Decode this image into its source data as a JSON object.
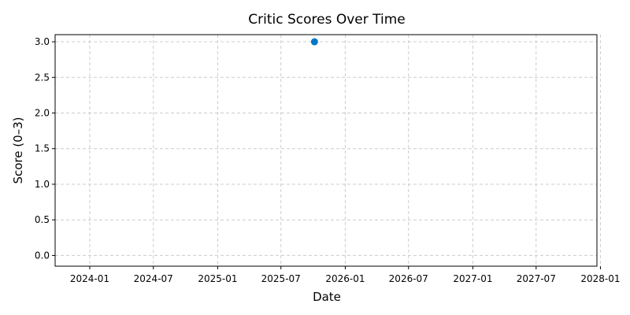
{
  "chart_data": {
    "type": "scatter",
    "title": "Critic Scores Over Time",
    "xlabel": "Date",
    "ylabel": "Score (0–3)",
    "x_ticks": [
      "2024-01",
      "2024-07",
      "2025-01",
      "2025-07",
      "2026-01",
      "2026-07",
      "2027-01",
      "2027-07",
      "2028-01"
    ],
    "y_ticks": [
      "0.0",
      "0.5",
      "1.0",
      "1.5",
      "2.0",
      "2.5",
      "3.0"
    ],
    "xlim": [
      "2023-09-24",
      "2027-12-22"
    ],
    "ylim": [
      -0.15,
      3.1
    ],
    "grid": true,
    "grid_style": "dashed",
    "series": [
      {
        "color": "#0077c8",
        "points": [
          {
            "x": "2025-10-05",
            "y": 3.0
          }
        ]
      }
    ]
  }
}
